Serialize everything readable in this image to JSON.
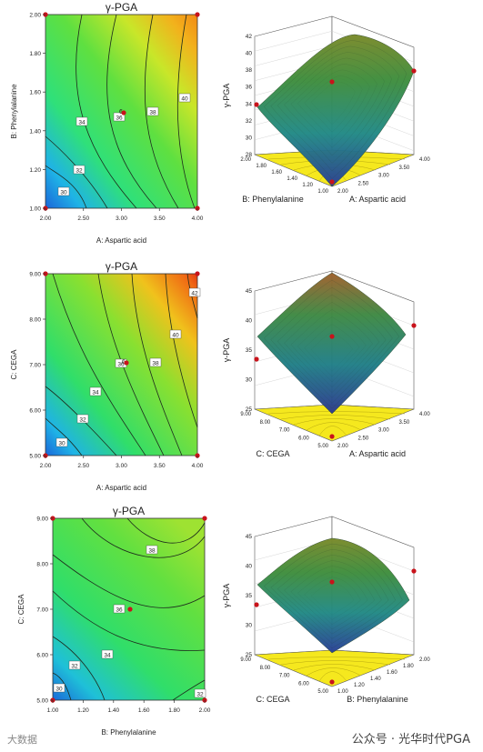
{
  "chart_data": [
    {
      "type": "contour",
      "title": "γ-PGA",
      "xlabel": "A: Aspartic acid",
      "ylabel": "B: Phenylalanine",
      "xticks": [
        "2.00",
        "2.50",
        "3.00",
        "3.50",
        "4.00"
      ],
      "yticks": [
        "1.00",
        "1.20",
        "1.40",
        "1.60",
        "1.80",
        "2.00"
      ],
      "xlim": [
        2,
        4
      ],
      "ylim": [
        1,
        2
      ],
      "contour_labels": [
        "30",
        "32",
        "34",
        "36",
        "38",
        "40"
      ],
      "center_label": "6"
    },
    {
      "type": "surface3d",
      "zlabel": "γ-PGA",
      "xlabel": "A: Aspartic acid",
      "ylabel": "B: Phenylalanine",
      "zticks": [
        "28",
        "30",
        "32",
        "34",
        "36",
        "38",
        "40",
        "42"
      ],
      "xticks": [
        "2.00",
        "2.50",
        "3.00",
        "3.50",
        "4.00"
      ],
      "yticks": [
        "1.00",
        "1.20",
        "1.40",
        "1.60",
        "1.80",
        "2.00"
      ]
    },
    {
      "type": "contour",
      "title": "γ-PGA",
      "xlabel": "A: Aspartic acid",
      "ylabel": "C: CEGA",
      "xticks": [
        "2.00",
        "2.50",
        "3.00",
        "3.50",
        "4.00"
      ],
      "yticks": [
        "5.00",
        "6.00",
        "7.00",
        "8.00",
        "9.00"
      ],
      "xlim": [
        2,
        4
      ],
      "ylim": [
        5,
        9
      ],
      "contour_labels": [
        "30",
        "32",
        "34",
        "36",
        "38",
        "40",
        "42"
      ],
      "center_label": "6"
    },
    {
      "type": "surface3d",
      "zlabel": "γ-PGA",
      "xlabel": "A: Aspartic acid",
      "ylabel": "C: CEGA",
      "zticks": [
        "25",
        "30",
        "35",
        "40",
        "45"
      ],
      "xticks": [
        "2.00",
        "2.50",
        "3.00",
        "3.50",
        "4.00"
      ],
      "yticks": [
        "5.00",
        "6.00",
        "7.00",
        "8.00",
        "9.00"
      ]
    },
    {
      "type": "contour",
      "title": "γ-PGA",
      "xlabel": "B: Phenylalanine",
      "ylabel": "C: CEGA",
      "xticks": [
        "1.00",
        "1.20",
        "1.40",
        "1.60",
        "1.80",
        "2.00"
      ],
      "yticks": [
        "5.00",
        "6.00",
        "7.00",
        "8.00",
        "9.00"
      ],
      "xlim": [
        1,
        2
      ],
      "ylim": [
        5,
        9
      ],
      "contour_labels": [
        "30",
        "32",
        "34",
        "36",
        "38",
        "32"
      ],
      "center_label": ""
    },
    {
      "type": "surface3d",
      "zlabel": "γ-PGA",
      "xlabel": "B: Phenylalanine",
      "ylabel": "C: CEGA",
      "zticks": [
        "25",
        "30",
        "35",
        "40",
        "45"
      ],
      "xticks": [
        "1.00",
        "1.20",
        "1.40",
        "1.60",
        "1.80",
        "2.00"
      ],
      "yticks": [
        "5.00",
        "6.00",
        "7.00",
        "8.00",
        "9.00"
      ]
    }
  ],
  "watermark": "公众号 · 光华时代PGA",
  "watermark_left": "大数据"
}
